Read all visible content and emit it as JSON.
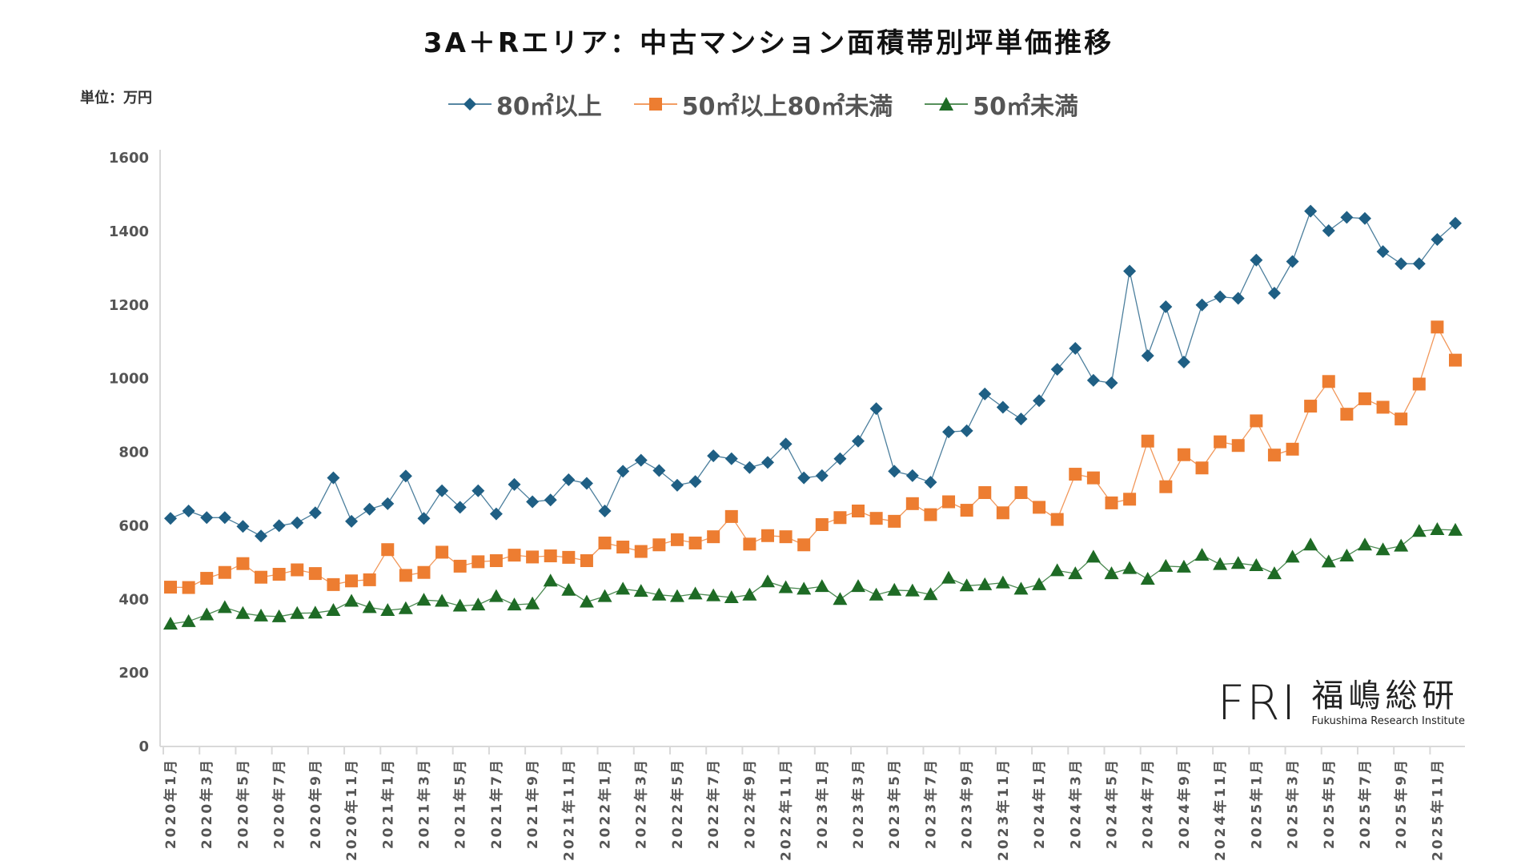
{
  "chart_data": {
    "type": "line",
    "title": "3A＋Rエリア：中古マンション面積帯別坪単価推移",
    "unit_label": "単位：万円",
    "xlabel": "",
    "ylabel": "",
    "ylim": [
      0,
      1600
    ],
    "yticks": [
      0,
      200,
      400,
      600,
      800,
      1000,
      1200,
      1400,
      1600
    ],
    "grid": false,
    "legend_position": "top-center",
    "x_start": {
      "year": 2020,
      "month": 1
    },
    "x_count": 72,
    "x_tick_every": 2,
    "series": [
      {
        "name": "80㎡以上",
        "color": "#1f5f84",
        "marker": "diamond",
        "values": [
          620,
          640,
          622,
          622,
          598,
          572,
          600,
          608,
          635,
          730,
          612,
          645,
          660,
          735,
          620,
          695,
          650,
          695,
          632,
          712,
          665,
          670,
          725,
          715,
          640,
          748,
          778,
          750,
          710,
          720,
          790,
          782,
          758,
          772,
          822,
          730,
          736,
          782,
          830,
          918,
          748,
          736,
          718,
          855,
          858,
          958,
          922,
          890,
          940,
          1025,
          1082,
          995,
          988,
          1292,
          1062,
          1195,
          1045,
          1200,
          1222,
          1218,
          1322,
          1232,
          1318,
          1455,
          1402,
          1438,
          1435,
          1345,
          1312,
          1312,
          1378,
          1422
        ]
      },
      {
        "name": "50㎡以上80㎡未満",
        "color": "#ed7d31",
        "marker": "square",
        "values": [
          433,
          432,
          457,
          473,
          497,
          460,
          468,
          480,
          470,
          440,
          450,
          453,
          535,
          465,
          473,
          528,
          490,
          502,
          505,
          520,
          515,
          518,
          514,
          505,
          553,
          542,
          530,
          548,
          562,
          553,
          570,
          625,
          550,
          573,
          570,
          548,
          603,
          622,
          640,
          620,
          612,
          660,
          630,
          665,
          642,
          690,
          635,
          690,
          650,
          617,
          740,
          730,
          662,
          672,
          830,
          706,
          793,
          757,
          828,
          818,
          885,
          792,
          808,
          925,
          992,
          903,
          945,
          922,
          890,
          985,
          1140,
          1050
        ]
      },
      {
        "name": "50㎡未満",
        "color": "#1e6b25",
        "marker": "triangle",
        "values": [
          333,
          340,
          358,
          378,
          362,
          355,
          353,
          362,
          363,
          370,
          395,
          378,
          370,
          375,
          398,
          395,
          382,
          385,
          408,
          385,
          388,
          450,
          425,
          393,
          408,
          428,
          422,
          412,
          408,
          415,
          410,
          405,
          412,
          448,
          432,
          428,
          435,
          400,
          435,
          412,
          425,
          423,
          413,
          458,
          437,
          440,
          445,
          428,
          440,
          478,
          470,
          515,
          470,
          484,
          455,
          490,
          488,
          520,
          495,
          498,
          492,
          470,
          515,
          548,
          502,
          518,
          548,
          535,
          545,
          585,
          590,
          588
        ]
      }
    ]
  },
  "logo": {
    "mark": "FRI",
    "name_jp": "福嶋総研",
    "name_en": "Fukushima Research Institute"
  }
}
